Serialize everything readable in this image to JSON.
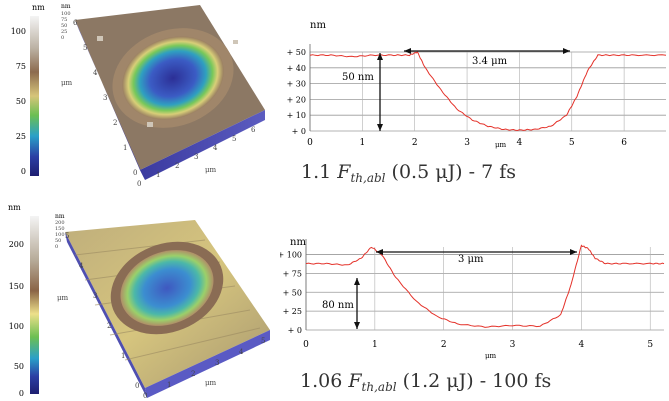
{
  "panels": [
    {
      "colorbar": {
        "unit": "nm",
        "ticks": [
          "100",
          "75",
          "50",
          "25",
          "0"
        ]
      },
      "map3d": {
        "small_unit": "nm",
        "small_ticks": [
          "100",
          "75",
          "50",
          "25",
          "0"
        ],
        "y_axis_unit": "μm",
        "x_axis_unit": "μm",
        "x_ticks": [
          "0",
          "1",
          "2",
          "3",
          "4",
          "5",
          "6"
        ],
        "y_ticks": [
          "0",
          "1",
          "2",
          "3",
          "4",
          "5",
          "6"
        ]
      },
      "profile": {
        "y_unit": "nm",
        "x_unit": "μm",
        "y_ticks": [
          "+ 50",
          "+ 40",
          "+ 30",
          "+ 20",
          "+ 10",
          "+ 0"
        ],
        "x_ticks": [
          "0",
          "1",
          "2",
          "3",
          "4",
          "5",
          "6"
        ],
        "width_label": "3.4 μm",
        "depth_label": "50 nm"
      },
      "caption": {
        "value": "1.1",
        "symbol": "F",
        "subscript": "th,abl",
        "energy": "(0.5 μJ) - 7 fs"
      }
    },
    {
      "colorbar": {
        "unit": "nm",
        "ticks": [
          "200",
          "150",
          "100",
          "50",
          "0"
        ]
      },
      "map3d": {
        "small_unit": "nm",
        "small_ticks": [
          "200",
          "150",
          "100",
          "50",
          "0"
        ],
        "y_axis_unit": "μm",
        "x_axis_unit": "μm",
        "x_ticks": [
          "0",
          "1",
          "2",
          "3",
          "4",
          "5"
        ],
        "y_ticks": [
          "0",
          "1",
          "2",
          "3",
          "4",
          "5"
        ]
      },
      "profile": {
        "y_unit": "nm",
        "x_unit": "μm",
        "y_ticks": [
          "+ 100",
          "+ 75",
          "+ 50",
          "+ 25",
          "+ 0"
        ],
        "x_ticks": [
          "0",
          "1",
          "2",
          "3",
          "4",
          "5"
        ],
        "width_label": "3 μm",
        "depth_label": "80 nm"
      },
      "caption": {
        "value": "1.06",
        "symbol": "F",
        "subscript": "th,abl",
        "energy": "(1.2 μJ) - 100 fs"
      }
    }
  ],
  "chart_data": [
    {
      "type": "line",
      "title": "",
      "xlabel": "μm",
      "ylabel": "nm",
      "xlim": [
        0,
        6.8
      ],
      "ylim": [
        0,
        50
      ],
      "series": [
        {
          "x": [
            0,
            0.4,
            0.8,
            1.2,
            1.6,
            1.9,
            2.05,
            2.2,
            2.5,
            2.8,
            3.1,
            3.4,
            3.7,
            4.0,
            4.3,
            4.6,
            4.9,
            5.1,
            5.3,
            5.5,
            5.8,
            6.2,
            6.8
          ],
          "y": [
            48,
            48,
            47,
            48,
            48,
            48,
            50,
            40,
            26,
            14,
            7,
            3,
            1,
            0.5,
            1,
            3,
            10,
            22,
            38,
            48,
            48,
            48,
            48
          ]
        }
      ],
      "annotations": [
        "3.4 μm",
        "50 nm"
      ]
    },
    {
      "type": "line",
      "title": "",
      "xlabel": "μm",
      "ylabel": "nm",
      "xlim": [
        0,
        5.2
      ],
      "ylim": [
        0,
        110
      ],
      "series": [
        {
          "x": [
            0,
            0.3,
            0.6,
            0.8,
            0.95,
            1.1,
            1.3,
            1.6,
            1.9,
            2.2,
            2.6,
            3.0,
            3.4,
            3.7,
            3.85,
            4.0,
            4.1,
            4.2,
            4.35,
            4.6,
            5.0,
            5.2
          ],
          "y": [
            88,
            88,
            86,
            95,
            110,
            100,
            70,
            38,
            18,
            8,
            4,
            6,
            5,
            20,
            60,
            112,
            108,
            95,
            88,
            88,
            88,
            88
          ]
        }
      ],
      "annotations": [
        "3 μm",
        "80 nm"
      ]
    }
  ]
}
